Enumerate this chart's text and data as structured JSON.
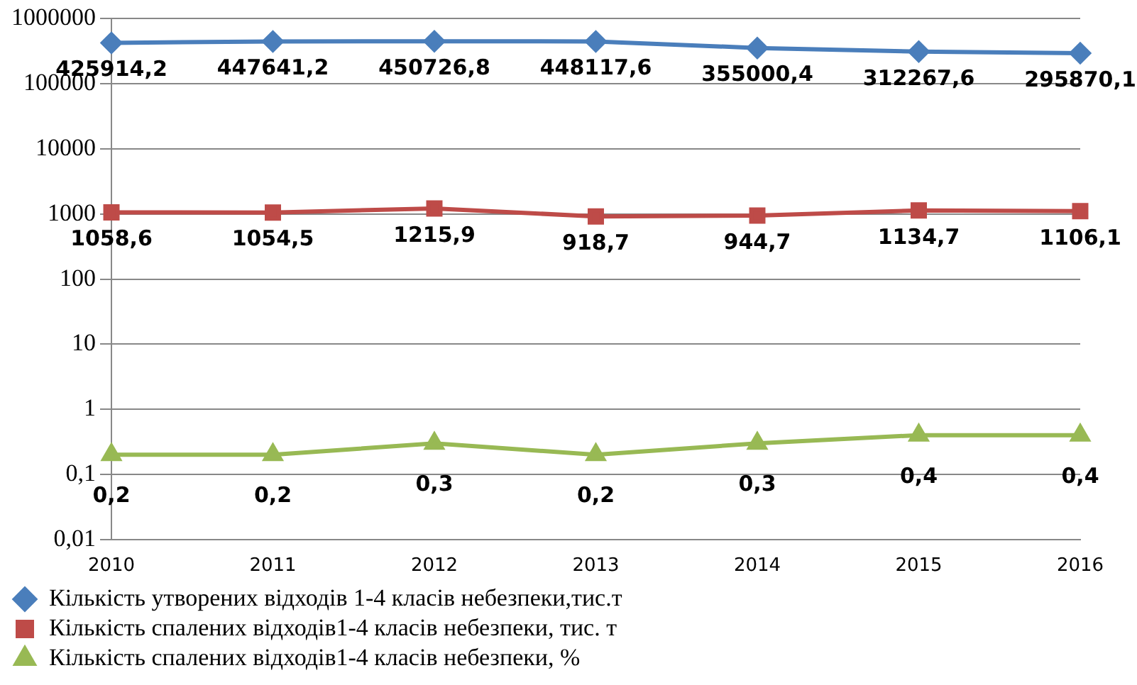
{
  "chart_data": {
    "type": "line",
    "categories": [
      "2010",
      "2011",
      "2012",
      "2013",
      "2014",
      "2015",
      "2016"
    ],
    "series": [
      {
        "name": "Кількість утворених відходів 1-4 класів небезпеки,тис.т",
        "color": "#4a7ebb",
        "marker": "diamond",
        "values": [
          425914.2,
          447641.2,
          450726.8,
          448117.6,
          355000.4,
          312267.6,
          295870.1
        ],
        "value_labels": [
          "425914,2",
          "447641,2",
          "450726,8",
          "448117,6",
          "355000,4",
          "312267,6",
          "295870,1"
        ]
      },
      {
        "name": "Кількість спалених відходів1-4 класів небезпеки, тис. т",
        "color": "#be4b48",
        "marker": "square",
        "values": [
          1058.6,
          1054.5,
          1215.9,
          918.7,
          944.7,
          1134.7,
          1106.1
        ],
        "value_labels": [
          "1058,6",
          "1054,5",
          "1215,9",
          "918,7",
          "944,7",
          "1134,7",
          "1106,1"
        ]
      },
      {
        "name": "Кількість спалених відходів1-4 класів небезпеки, %",
        "color": "#98b954",
        "marker": "triangle",
        "values": [
          0.2,
          0.2,
          0.3,
          0.2,
          0.3,
          0.4,
          0.4
        ],
        "value_labels": [
          "0,2",
          "0,2",
          "0,3",
          "0,2",
          "0,3",
          "0,4",
          "0,4"
        ]
      }
    ],
    "log": "y",
    "ylim": [
      0.01,
      1000000
    ],
    "yticks": [
      {
        "value": 0.01,
        "label": "0,01"
      },
      {
        "value": 0.1,
        "label": "0,1"
      },
      1,
      10,
      100,
      1000,
      10000,
      100000,
      1000000
    ],
    "grid": "y",
    "legend": "bottom"
  }
}
